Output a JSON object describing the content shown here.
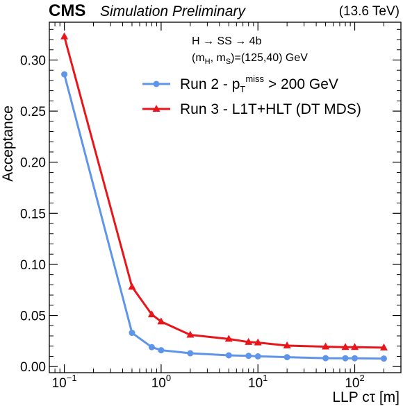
{
  "header": {
    "experiment": "CMS",
    "status": "Simulation Preliminary",
    "energy": "(13.6 TeV)"
  },
  "annotation": {
    "process": "H → SS → 4b",
    "masses_prefix": "(m",
    "masses_sub_h": "H",
    "masses_sep": ", m",
    "masses_sub_s": "S",
    "masses_suffix": ")=(125,40) GeV"
  },
  "legend": {
    "run2_prefix": "Run 2 - p",
    "run2_sub": "T",
    "run2_sup": "miss",
    "run2_suffix": " > 200 GeV",
    "run3_label": "Run 3 - L1T+HLT (DT MDS)"
  },
  "chart_data": {
    "type": "line",
    "xscale": "log",
    "xlabel": "LLP cτ [m]",
    "ylabel": "Acceptance",
    "xlim": [
      0.07,
      300
    ],
    "ylim": [
      -0.006,
      0.337
    ],
    "x_tick_labels": [
      {
        "base": "10",
        "exp": "−1",
        "value": 0.1
      },
      {
        "base": "10",
        "exp": "0",
        "value": 1
      },
      {
        "base": "10",
        "exp": "1",
        "value": 10
      },
      {
        "base": "10",
        "exp": "2",
        "value": 100
      }
    ],
    "y_tick_labels": [
      "0.00",
      "0.05",
      "0.10",
      "0.15",
      "0.20",
      "0.25",
      "0.30"
    ],
    "y_ticks": [
      0.0,
      0.05,
      0.1,
      0.15,
      0.2,
      0.25,
      0.3
    ],
    "grid": false,
    "legend_position": "top-right",
    "series": [
      {
        "name": "Run 2 - pT miss > 200 GeV",
        "color": "#5f95e8",
        "marker": "circle",
        "x": [
          0.1,
          0.5,
          0.8,
          1,
          2,
          5,
          8,
          10,
          20,
          50,
          80,
          100,
          200
        ],
        "y": [
          0.286,
          0.033,
          0.019,
          0.016,
          0.013,
          0.011,
          0.0105,
          0.01,
          0.0092,
          0.0082,
          0.0081,
          0.0081,
          0.0078
        ]
      },
      {
        "name": "Run 3 - L1T+HLT (DT MDS)",
        "color": "#e8161b",
        "marker": "triangle",
        "x": [
          0.1,
          0.5,
          0.8,
          1,
          2,
          5,
          8,
          10,
          20,
          50,
          80,
          100,
          200
        ],
        "y": [
          0.323,
          0.078,
          0.051,
          0.044,
          0.031,
          0.027,
          0.024,
          0.0235,
          0.0205,
          0.0195,
          0.019,
          0.019,
          0.0185
        ]
      }
    ]
  }
}
